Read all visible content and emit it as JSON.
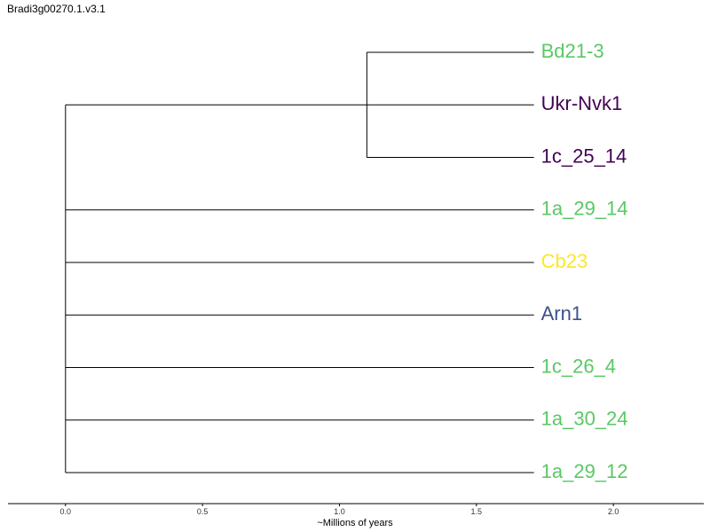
{
  "title": "Bradi3g00270.1.v3.1",
  "chart_data": {
    "type": "dendrogram",
    "xlabel": "~Millions of years",
    "xlim": [
      -0.21,
      2.33
    ],
    "ticks": [
      0.0,
      0.5,
      1.0,
      1.5,
      2.0
    ],
    "tick_labels": [
      "0.0",
      "0.5",
      "1.0",
      "1.5",
      "2.0"
    ],
    "leaf_x": 1.71,
    "leaves": [
      {
        "label": "Bd21-3",
        "color": "#5ac864"
      },
      {
        "label": "Ukr-Nvk1",
        "color": "#440154"
      },
      {
        "label": "1c_25_14",
        "color": "#440154"
      },
      {
        "label": "1a_29_14",
        "color": "#5ac864"
      },
      {
        "label": "Cb23",
        "color": "#fde725"
      },
      {
        "label": "Arn1",
        "color": "#3b528b"
      },
      {
        "label": "1c_26_4",
        "color": "#5ac864"
      },
      {
        "label": "1a_30_24",
        "color": "#5ac864"
      },
      {
        "label": "1a_29_12",
        "color": "#5ac864"
      }
    ],
    "clades": [
      {
        "node_x": 1.1,
        "children": [
          0,
          1,
          2
        ],
        "children_x": [
          1.71,
          1.71,
          1.71
        ]
      },
      {
        "node_x": 0.0,
        "children": [
          "clade0",
          3,
          4,
          5,
          6,
          7,
          8
        ],
        "children_x": [
          1.1,
          1.71,
          1.71,
          1.71,
          1.71,
          1.71,
          1.71
        ]
      }
    ]
  }
}
